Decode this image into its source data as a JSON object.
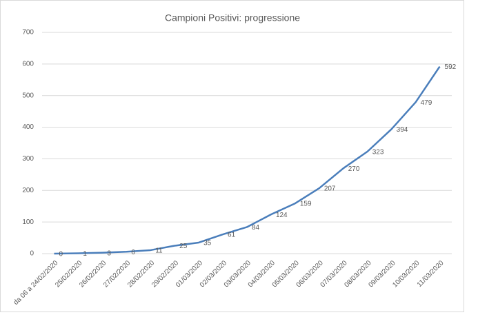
{
  "chart_data": {
    "type": "line",
    "title": "Campioni Positivi: progressione",
    "categories": [
      "da 06 a 24/02/2020",
      "25/02/2020",
      "26/02/2020",
      "27/02/2020",
      "28/02/2020",
      "29/02/2020",
      "01/03/2020",
      "02/03/2020",
      "03/03/2020",
      "04/03/2020",
      "05/03/2020",
      "06/03/2020",
      "07/03/2020",
      "08/03/2020",
      "09/03/2020",
      "10/03/2020",
      "11/03/2020"
    ],
    "values": [
      0,
      1,
      3,
      6,
      11,
      25,
      35,
      61,
      84,
      124,
      159,
      207,
      270,
      323,
      394,
      479,
      592
    ],
    "color": "#4a7ebb",
    "ylim": [
      0,
      700
    ],
    "yticks": [
      0,
      100,
      200,
      300,
      400,
      500,
      600,
      700
    ],
    "grid": true
  }
}
